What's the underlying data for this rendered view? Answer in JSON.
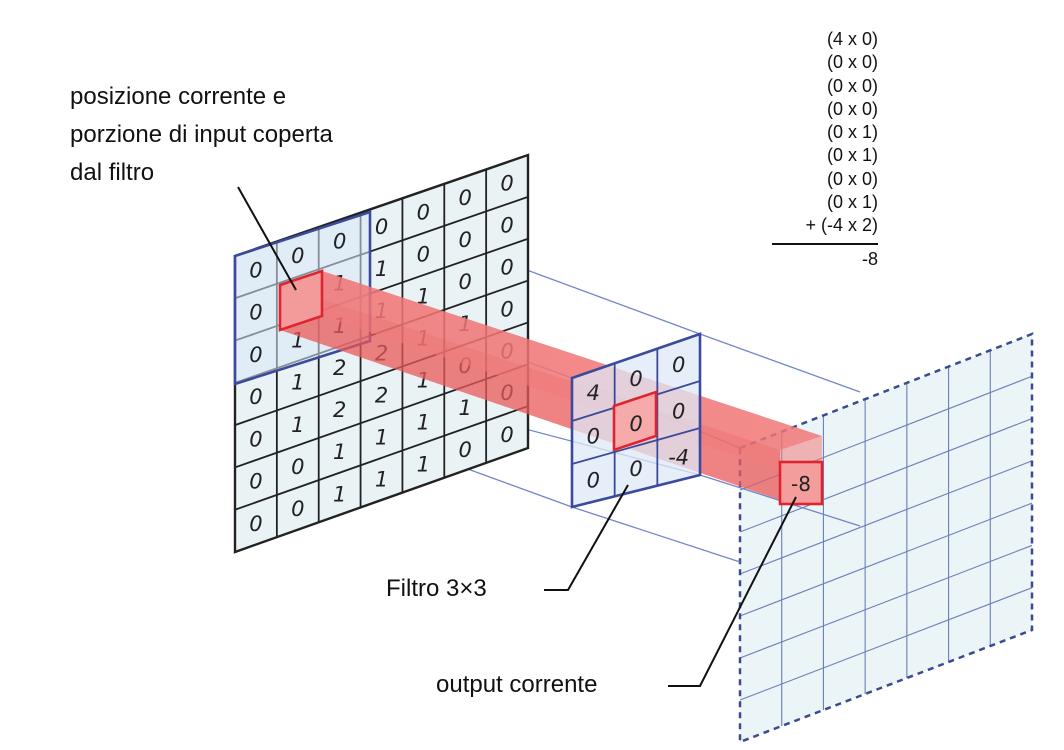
{
  "labels": {
    "position": [
      "posizione corrente e",
      "porzione di input coperta",
      "dal filtro"
    ],
    "filter": "Filtro 3×3",
    "output": "output corrente"
  },
  "input_grid": [
    [
      "0",
      "0",
      "0",
      "0",
      "0",
      "0",
      "0"
    ],
    [
      "0",
      "1",
      "1",
      "1",
      "0",
      "0",
      "0"
    ],
    [
      "0",
      "1",
      "1",
      "1",
      "1",
      "0",
      "0"
    ],
    [
      "0",
      "1",
      "2",
      "2",
      "1",
      "1",
      "0"
    ],
    [
      "0",
      "1",
      "2",
      "2",
      "1",
      "0",
      "0"
    ],
    [
      "0",
      "0",
      "1",
      "1",
      "1",
      "1",
      "0"
    ],
    [
      "0",
      "0",
      "1",
      "1",
      "1",
      "0",
      "0"
    ]
  ],
  "filter_grid": [
    [
      "4",
      "0",
      "0"
    ],
    [
      "0",
      "0",
      "0"
    ],
    [
      "0",
      "0",
      "-4"
    ]
  ],
  "output_value": "-8",
  "calculation": {
    "terms": [
      "(4 x 0)",
      "(0 x 0)",
      "(0 x 0)",
      "(0 x 0)",
      "(0 x 1)",
      "(0 x 1)",
      "(0 x 0)",
      "(0 x 1)",
      "+ (-4 x 2)"
    ],
    "result": "-8"
  },
  "colors": {
    "grid_line": "#222222",
    "window_border": "#3b4a9a",
    "highlight_red": "#e0242f",
    "beam_fill": "#f16a6a",
    "panel_fill": "#e9f3f6",
    "projection_line": "#6f86c9",
    "output_grid_dashed": "#3a4c8f"
  }
}
